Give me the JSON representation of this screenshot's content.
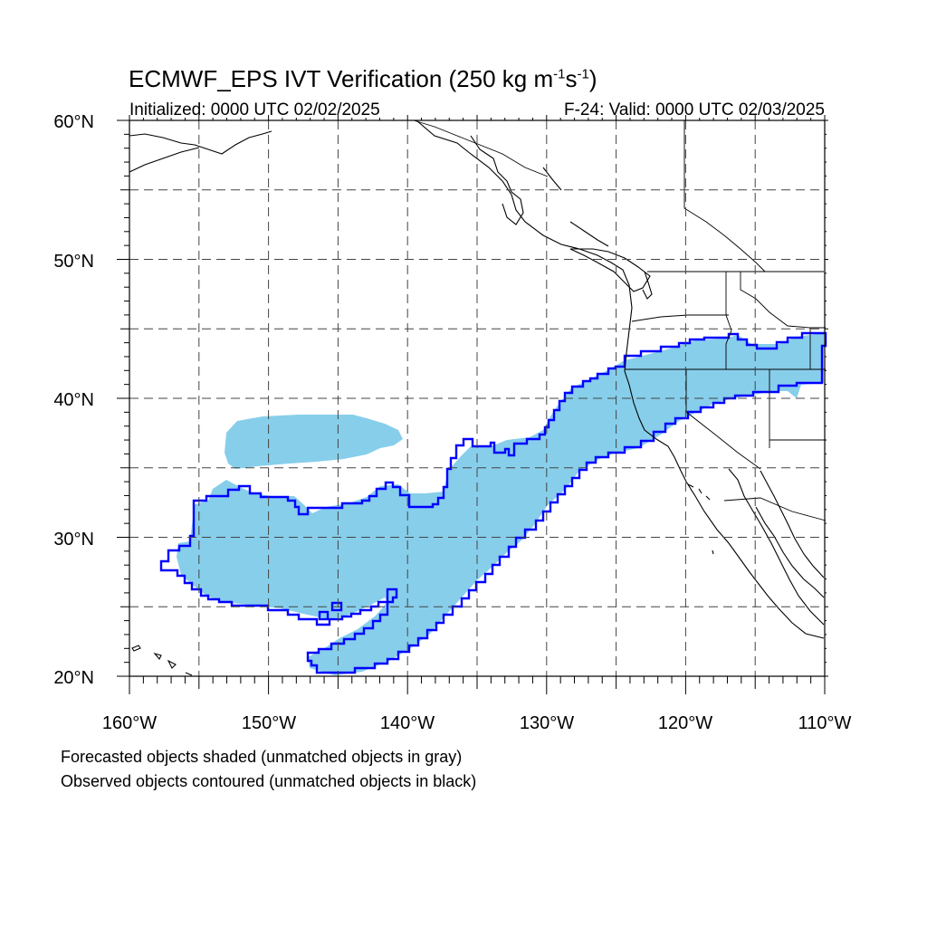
{
  "title": {
    "text": "ECMWF_EPS IVT Verification (250 kg m",
    "exp1": "-1",
    "mid": "s",
    "exp2": "-1",
    "close": ")"
  },
  "subtitle_left": "Initialized: 0000 UTC 02/02/2025",
  "subtitle_right": "F-24: Valid: 0000 UTC 02/03/2025",
  "map": {
    "extent": {
      "lon_min": -160,
      "lon_max": -110,
      "lat_min": 20,
      "lat_max": 60
    },
    "grid_lines": "dashed",
    "lat_labels": [
      {
        "value": 60,
        "text": "60°N"
      },
      {
        "value": 50,
        "text": "50°N"
      },
      {
        "value": 40,
        "text": "40°N"
      },
      {
        "value": 30,
        "text": "30°N"
      },
      {
        "value": 20,
        "text": "20°N"
      }
    ],
    "lon_labels": [
      {
        "value": -160,
        "text": "160°W"
      },
      {
        "value": -150,
        "text": "150°W"
      },
      {
        "value": -140,
        "text": "140°W"
      },
      {
        "value": -130,
        "text": "130°W"
      },
      {
        "value": -120,
        "text": "120°W"
      },
      {
        "value": -110,
        "text": "110°W"
      }
    ],
    "colors": {
      "forecast_fill": "#87ceeb",
      "observed_contour": "#0000ff",
      "coastline": "#000000",
      "grid": "#444444"
    }
  },
  "footnotes": [
    "Forecasted objects shaded (unmatched objects in gray)",
    "Observed objects contoured (unmatched objects in black)"
  ]
}
